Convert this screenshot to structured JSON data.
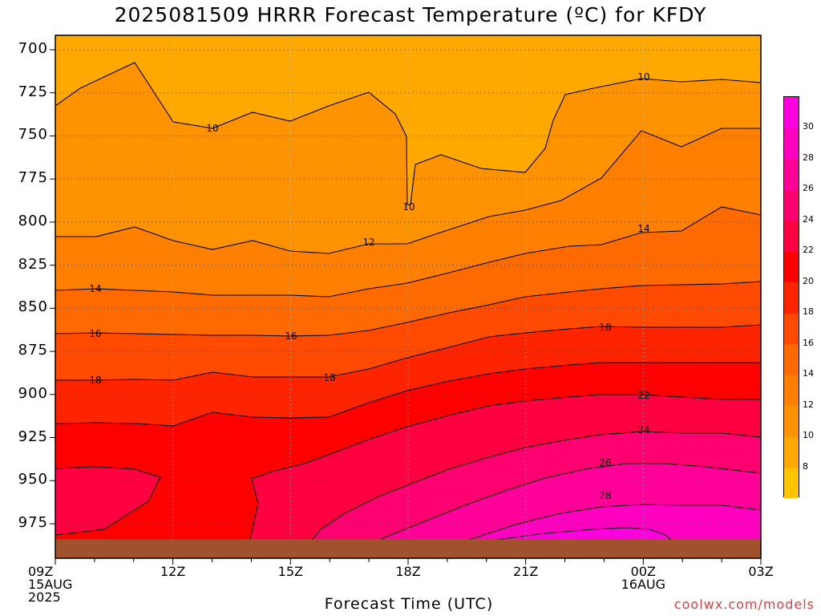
{
  "title": "2025081509 HRRR Forecast Temperature (ºC) for KFDY",
  "xlabel": "Forecast Time (UTC)",
  "credit": "coolwx.com/models",
  "colorbar": {
    "levels": [
      "8",
      "10",
      "12",
      "14",
      "16",
      "18",
      "20",
      "22",
      "24",
      "26",
      "28",
      "30"
    ],
    "colors": [
      "#ffc400",
      "#ffa800",
      "#ff9200",
      "#ff8000",
      "#ff6a00",
      "#ff4a00",
      "#ff2400",
      "#ff0000",
      "#ff0040",
      "#ff0070",
      "#ff0098",
      "#ff00c0",
      "#ff00e0"
    ]
  },
  "chart_data": {
    "type": "heatmap",
    "ylim": [
      990,
      692
    ],
    "yticks": [
      "700",
      "725",
      "750",
      "775",
      "800",
      "825",
      "850",
      "875",
      "900",
      "925",
      "950",
      "975"
    ],
    "ytick_values": [
      700,
      725,
      750,
      775,
      800,
      825,
      850,
      875,
      900,
      925,
      950,
      975
    ],
    "xlim": [
      0,
      18
    ],
    "xticks": [
      {
        "hour": 0,
        "lines": [
          "09Z",
          "15AUG",
          "2025"
        ]
      },
      {
        "hour": 3,
        "lines": [
          "12Z"
        ]
      },
      {
        "hour": 6,
        "lines": [
          "15Z"
        ]
      },
      {
        "hour": 9,
        "lines": [
          "18Z"
        ]
      },
      {
        "hour": 12,
        "lines": [
          "21Z"
        ]
      },
      {
        "hour": 15,
        "lines": [
          "00Z",
          "16AUG"
        ]
      },
      {
        "hour": 18,
        "lines": [
          "03Z"
        ]
      }
    ],
    "grid": true,
    "surface_color": "#a0522d",
    "surface_pressure": 984,
    "contours": [
      {
        "level": 10,
        "labels": [
          "10",
          "10",
          "10"
        ]
      },
      {
        "level": 12,
        "labels": [
          "12"
        ]
      },
      {
        "level": 14,
        "labels": [
          "14",
          "14"
        ]
      },
      {
        "level": 16,
        "labels": [
          "16",
          "16"
        ]
      },
      {
        "level": 18,
        "labels": [
          "18",
          "18",
          "18"
        ]
      },
      {
        "level": 20,
        "labels": []
      },
      {
        "level": 22,
        "labels": [
          "22"
        ]
      },
      {
        "level": 24,
        "labels": [
          "24"
        ]
      },
      {
        "level": 26,
        "labels": [
          "26"
        ]
      },
      {
        "level": 28,
        "labels": [
          "28"
        ]
      },
      {
        "level": 30,
        "labels": []
      }
    ]
  }
}
